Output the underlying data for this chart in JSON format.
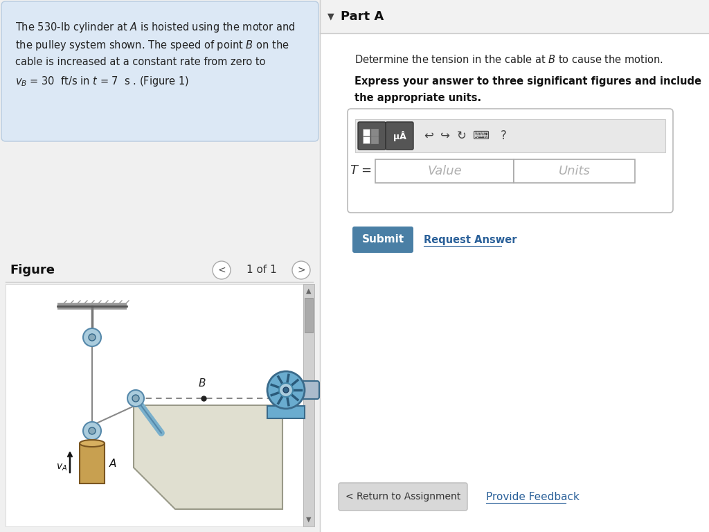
{
  "bg_color": "#f0f0f0",
  "left_panel_bg": "#dce8f5",
  "left_panel_border": "#b8cce0",
  "problem_text_lines": [
    "The 530-lb cylinder at $\\mathit{A}$ is hoisted using the motor and",
    "the pulley system shown. The speed of point $\\mathit{B}$ on the",
    "cable is increased at a constant rate from zero to",
    "$v_B$ = 30  ft/s in $t$ = 7  s . (Figure 1)"
  ],
  "figure_label": "Figure",
  "nav_text": "1 of 1",
  "part_a_label": "Part A",
  "question_line1": "Determine the tension in the cable at $\\mathit{B}$ to cause the motion.",
  "question_line2_bold": "Express your answer to three significant figures and include",
  "question_line3_bold": "the appropriate units.",
  "value_placeholder": "Value",
  "units_placeholder": "Units",
  "submit_label": "Submit",
  "request_label": "Request Answer",
  "return_label": "< Return to Assignment",
  "feedback_label": "Provide Feedback",
  "submit_color": "#4a7fa5",
  "submit_text_color": "#ffffff",
  "link_color": "#2a6099",
  "separator_color": "#cccccc"
}
